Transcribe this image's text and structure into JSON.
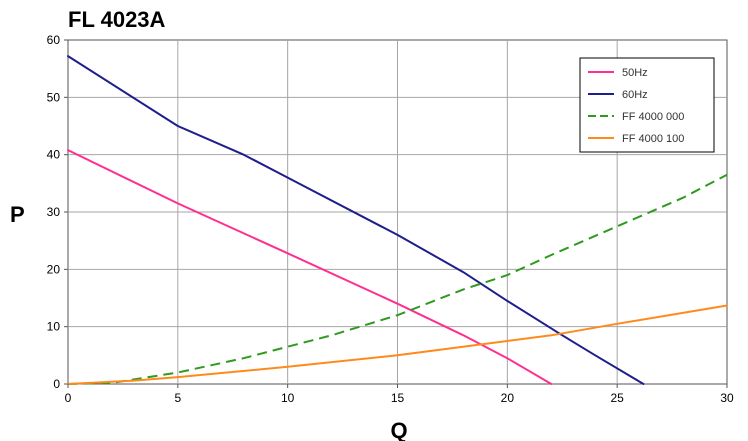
{
  "chart_data": {
    "type": "line",
    "title": "FL 4023A",
    "xlabel": "Q",
    "ylabel": "P",
    "xlim": [
      0,
      30
    ],
    "ylim": [
      0,
      60
    ],
    "xticks": [
      0,
      5,
      10,
      15,
      20,
      25,
      30
    ],
    "yticks": [
      0,
      10,
      20,
      30,
      40,
      50,
      60
    ],
    "grid": true,
    "legend_position": "top-right",
    "series": [
      {
        "name": "50Hz",
        "color": "#ff2f8f",
        "dash": "solid",
        "points": [
          [
            0,
            40.8
          ],
          [
            5,
            31.5
          ],
          [
            10,
            22.8
          ],
          [
            15,
            14
          ],
          [
            18,
            8.5
          ],
          [
            20,
            4.5
          ],
          [
            22,
            0
          ]
        ]
      },
      {
        "name": "60Hz",
        "color": "#1e1e8c",
        "dash": "solid",
        "points": [
          [
            0,
            57.2
          ],
          [
            5,
            45
          ],
          [
            8,
            40
          ],
          [
            10,
            36
          ],
          [
            15,
            26
          ],
          [
            18,
            19.5
          ],
          [
            20,
            14.5
          ],
          [
            22.5,
            8.5
          ],
          [
            24,
            5
          ],
          [
            26.2,
            0
          ]
        ]
      },
      {
        "name": "FF 4000 000",
        "color": "#2e9a1e",
        "dash": "dashed",
        "points": [
          [
            0,
            0
          ],
          [
            2,
            0.2
          ],
          [
            5,
            2
          ],
          [
            8,
            4.5
          ],
          [
            10,
            6.5
          ],
          [
            12,
            8.5
          ],
          [
            15,
            12
          ],
          [
            18,
            16.5
          ],
          [
            20,
            19
          ],
          [
            22,
            22.5
          ],
          [
            25,
            27.5
          ],
          [
            28,
            32.5
          ],
          [
            30,
            36.5
          ]
        ]
      },
      {
        "name": "FF 4000 100",
        "color": "#ff8a1c",
        "dash": "solid",
        "points": [
          [
            0,
            0
          ],
          [
            3,
            0.6
          ],
          [
            5,
            1.2
          ],
          [
            10,
            3
          ],
          [
            15,
            5
          ],
          [
            20,
            7.5
          ],
          [
            22,
            8.5
          ],
          [
            25,
            10.5
          ],
          [
            30,
            13.7
          ]
        ]
      }
    ]
  }
}
